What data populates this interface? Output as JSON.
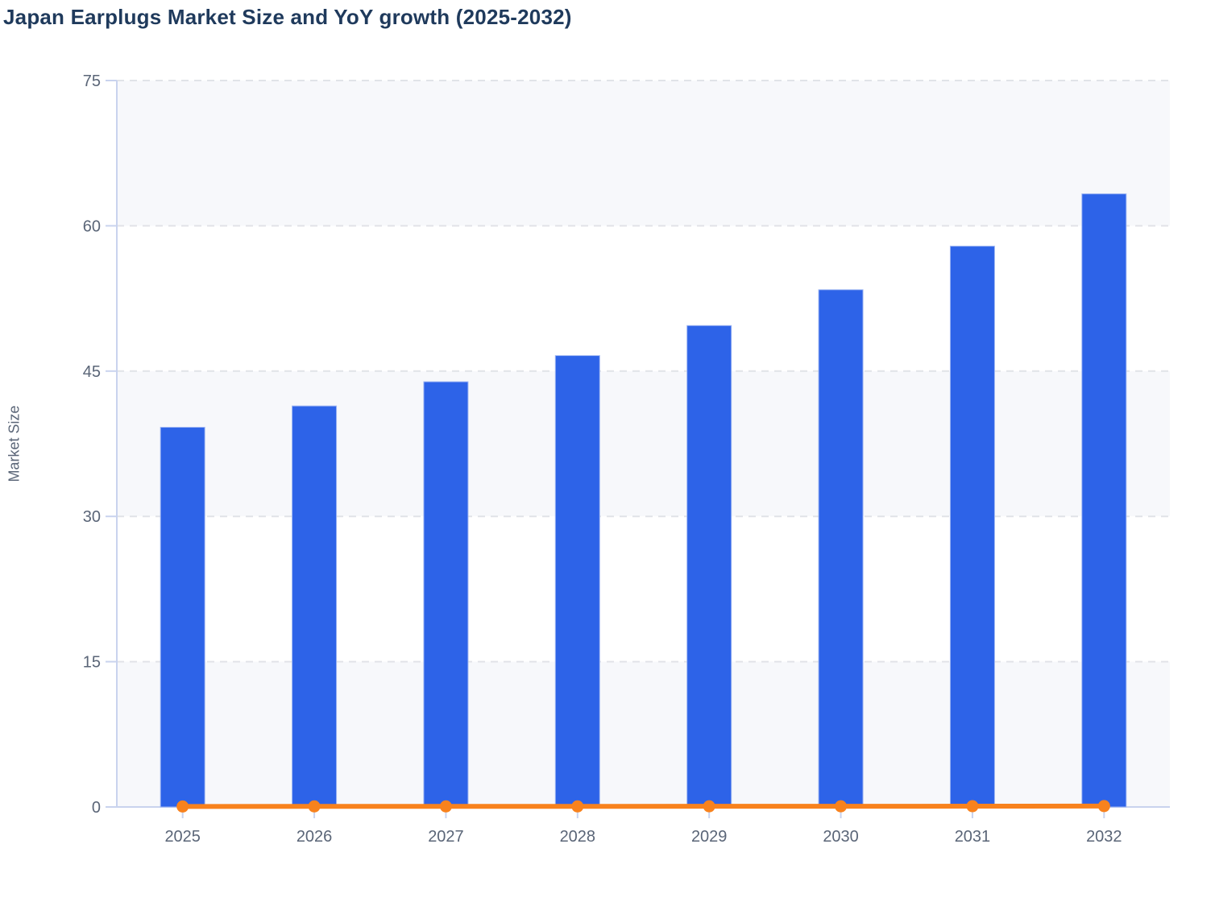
{
  "title": "Japan Earplugs Market Size and YoY growth (2025-2032)",
  "chart_data": {
    "type": "bar",
    "title": "Japan Earplugs Market Size and YoY growth (2025-2032)",
    "xlabel": "",
    "ylabel": "Market Size",
    "categories": [
      "2025",
      "2026",
      "2027",
      "2028",
      "2029",
      "2030",
      "2031",
      "2032"
    ],
    "series": [
      {
        "name": "Market Size",
        "type": "bar",
        "color": "#2d63e8",
        "values": [
          39.2,
          41.4,
          43.9,
          46.6,
          49.7,
          53.4,
          57.9,
          63.3
        ]
      },
      {
        "name": "YoY growth",
        "type": "line",
        "color": "#f8821d",
        "values": [
          0.05,
          0.06,
          0.06,
          0.06,
          0.07,
          0.07,
          0.08,
          0.09
        ]
      }
    ],
    "ylim": [
      0,
      75
    ],
    "yticks": [
      0,
      15,
      30,
      45,
      60,
      75
    ],
    "grid": "horizontal-dashed",
    "legend": "none"
  },
  "colors": {
    "bar_fill": "#2d63e8",
    "bar_border": "#9db5f3",
    "line": "#f8821d",
    "axis": "#c9d3ee",
    "grid": "#e1e3e8",
    "band": "#f7f8fb",
    "band_alt": "#ffffff",
    "tick_text": "#5a6577",
    "title_text": "#1f3a5c"
  }
}
